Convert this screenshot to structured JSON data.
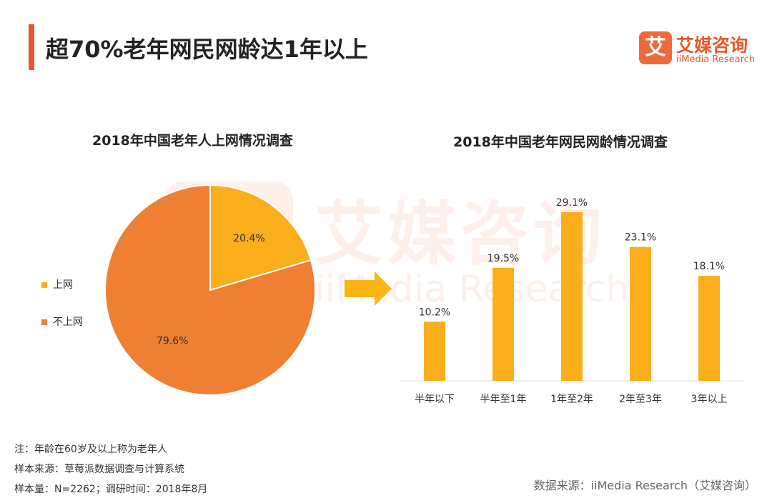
{
  "page": {
    "title": "超70%老年网民网龄达1年以上"
  },
  "logo": {
    "badge": "艾",
    "cn": "艾媒咨询",
    "en": "iiMedia Research"
  },
  "watermark": {
    "cn": "艾媒咨询",
    "en": "iiMedia Research"
  },
  "colors": {
    "accent": "#e8582a",
    "pie_online": "#fbae1b",
    "pie_offline": "#ee7f33",
    "bar": "#fbae1b",
    "arrow": "#fbb515"
  },
  "chart_data": [
    {
      "type": "pie",
      "title": "2018年中国老年人上网情况调查",
      "labels": [
        "上网",
        "不上网"
      ],
      "values": [
        20.4,
        79.6
      ],
      "value_labels": [
        "20.4%",
        "79.6%"
      ],
      "legend_position": "left"
    },
    {
      "type": "bar",
      "title": "2018年中国老年网民网龄情况调查",
      "categories": [
        "半年以下",
        "半年至1年",
        "1年至2年",
        "2年至3年",
        "3年以上"
      ],
      "values": [
        10.2,
        19.5,
        29.1,
        23.1,
        18.1
      ],
      "value_labels": [
        "10.2%",
        "19.5%",
        "29.1%",
        "23.1%",
        "18.1%"
      ],
      "ylim": [
        0,
        30
      ],
      "xlabel": "",
      "ylabel": "",
      "grid": false
    }
  ],
  "notes": {
    "note": "注：年龄在60岁及以上称为老年人",
    "sample_source": "样本来源：草莓派数据调查与计算系统",
    "sample_size": "样本量：N=2262；调研时间：2018年8月"
  },
  "source": "数据来源：iiMedia Research（艾媒咨询）"
}
